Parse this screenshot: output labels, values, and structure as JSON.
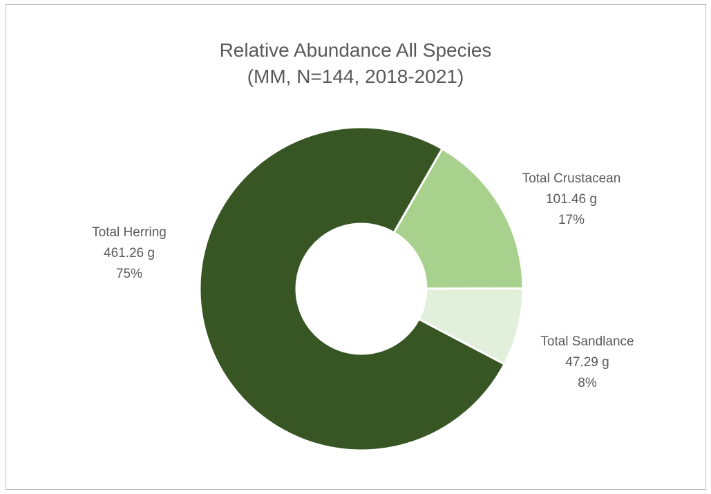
{
  "chart_data": {
    "type": "pie",
    "variant": "doughnut",
    "title": "Relative Abundance All Species",
    "subtitle": "(MM, N=144, 2018-2021)",
    "unit": "g",
    "slices": [
      {
        "label": "Total Crustacean",
        "value": 101.46,
        "value_text": "101.46 g",
        "percent_text": "17%",
        "color": "#a9d18e"
      },
      {
        "label": "Total Sandlance",
        "value": 47.29,
        "value_text": "47.29 g",
        "percent_text": "8%",
        "color": "#e2efda"
      },
      {
        "label": "Total Herring",
        "value": 461.26,
        "value_text": "461.26 g",
        "percent_text": "75%",
        "color": "#375623"
      }
    ],
    "legend": "none"
  }
}
